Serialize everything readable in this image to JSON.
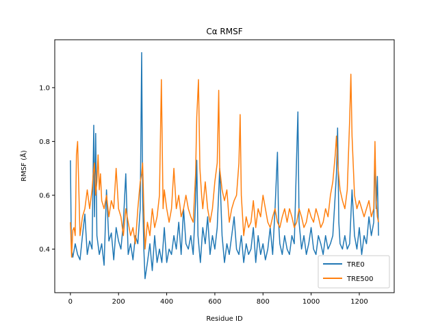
{
  "chart_data": {
    "type": "line",
    "title": "Cα RMSF",
    "xlabel": "Residue ID",
    "ylabel": "RMSF (Å)",
    "xlim": [
      -65,
      1345
    ],
    "ylim": [
      0.238,
      1.178
    ],
    "xticks": [
      0,
      200,
      400,
      600,
      800,
      1000,
      1200
    ],
    "yticks": [
      0.4,
      0.6,
      0.8,
      1.0
    ],
    "ytick_labels": [
      "0.4",
      "0.6",
      "0.8",
      "1.0"
    ],
    "grid": false,
    "legend_position": "lower-right",
    "series": [
      {
        "name": "TRE0",
        "color": "#1f77b4",
        "points": [
          [
            0,
            0.73
          ],
          [
            4,
            0.4
          ],
          [
            10,
            0.37
          ],
          [
            20,
            0.42
          ],
          [
            30,
            0.38
          ],
          [
            40,
            0.36
          ],
          [
            50,
            0.45
          ],
          [
            60,
            0.53
          ],
          [
            70,
            0.38
          ],
          [
            80,
            0.43
          ],
          [
            90,
            0.4
          ],
          [
            97,
            0.86
          ],
          [
            100,
            0.52
          ],
          [
            105,
            0.83
          ],
          [
            110,
            0.45
          ],
          [
            120,
            0.38
          ],
          [
            130,
            0.42
          ],
          [
            140,
            0.34
          ],
          [
            150,
            0.62
          ],
          [
            160,
            0.43
          ],
          [
            170,
            0.46
          ],
          [
            180,
            0.36
          ],
          [
            190,
            0.48
          ],
          [
            200,
            0.43
          ],
          [
            210,
            0.4
          ],
          [
            220,
            0.5
          ],
          [
            230,
            0.68
          ],
          [
            240,
            0.38
          ],
          [
            250,
            0.42
          ],
          [
            260,
            0.36
          ],
          [
            270,
            0.45
          ],
          [
            280,
            0.42
          ],
          [
            290,
            0.55
          ],
          [
            296,
            1.13
          ],
          [
            300,
            0.6
          ],
          [
            305,
            0.4
          ],
          [
            310,
            0.29
          ],
          [
            320,
            0.35
          ],
          [
            330,
            0.42
          ],
          [
            340,
            0.32
          ],
          [
            350,
            0.45
          ],
          [
            360,
            0.35
          ],
          [
            370,
            0.4
          ],
          [
            380,
            0.35
          ],
          [
            390,
            0.48
          ],
          [
            400,
            0.35
          ],
          [
            410,
            0.4
          ],
          [
            420,
            0.38
          ],
          [
            430,
            0.45
          ],
          [
            440,
            0.4
          ],
          [
            450,
            0.5
          ],
          [
            460,
            0.38
          ],
          [
            470,
            0.55
          ],
          [
            480,
            0.42
          ],
          [
            490,
            0.4
          ],
          [
            500,
            0.45
          ],
          [
            510,
            0.38
          ],
          [
            520,
            0.58
          ],
          [
            525,
            0.73
          ],
          [
            530,
            0.45
          ],
          [
            540,
            0.35
          ],
          [
            550,
            0.48
          ],
          [
            560,
            0.42
          ],
          [
            570,
            0.52
          ],
          [
            580,
            0.38
          ],
          [
            590,
            0.45
          ],
          [
            600,
            0.4
          ],
          [
            610,
            0.48
          ],
          [
            620,
            0.7
          ],
          [
            630,
            0.45
          ],
          [
            640,
            0.35
          ],
          [
            650,
            0.42
          ],
          [
            660,
            0.38
          ],
          [
            670,
            0.45
          ],
          [
            680,
            0.52
          ],
          [
            690,
            0.4
          ],
          [
            700,
            0.38
          ],
          [
            710,
            0.45
          ],
          [
            720,
            0.35
          ],
          [
            730,
            0.42
          ],
          [
            740,
            0.38
          ],
          [
            750,
            0.4
          ],
          [
            760,
            0.48
          ],
          [
            770,
            0.35
          ],
          [
            780,
            0.45
          ],
          [
            790,
            0.38
          ],
          [
            800,
            0.42
          ],
          [
            810,
            0.36
          ],
          [
            820,
            0.4
          ],
          [
            830,
            0.48
          ],
          [
            840,
            0.38
          ],
          [
            850,
            0.55
          ],
          [
            860,
            0.76
          ],
          [
            865,
            0.5
          ],
          [
            870,
            0.42
          ],
          [
            880,
            0.38
          ],
          [
            890,
            0.45
          ],
          [
            900,
            0.4
          ],
          [
            910,
            0.38
          ],
          [
            920,
            0.45
          ],
          [
            930,
            0.42
          ],
          [
            940,
            0.75
          ],
          [
            945,
            0.91
          ],
          [
            950,
            0.5
          ],
          [
            960,
            0.4
          ],
          [
            970,
            0.45
          ],
          [
            980,
            0.38
          ],
          [
            990,
            0.42
          ],
          [
            1000,
            0.48
          ],
          [
            1010,
            0.4
          ],
          [
            1020,
            0.38
          ],
          [
            1030,
            0.45
          ],
          [
            1040,
            0.42
          ],
          [
            1050,
            0.38
          ],
          [
            1060,
            0.45
          ],
          [
            1070,
            0.4
          ],
          [
            1080,
            0.42
          ],
          [
            1090,
            0.45
          ],
          [
            1100,
            0.6
          ],
          [
            1105,
            0.68
          ],
          [
            1110,
            0.85
          ],
          [
            1115,
            0.5
          ],
          [
            1120,
            0.42
          ],
          [
            1130,
            0.4
          ],
          [
            1140,
            0.45
          ],
          [
            1150,
            0.4
          ],
          [
            1160,
            0.42
          ],
          [
            1170,
            0.62
          ],
          [
            1180,
            0.45
          ],
          [
            1190,
            0.4
          ],
          [
            1200,
            0.48
          ],
          [
            1210,
            0.38
          ],
          [
            1220,
            0.45
          ],
          [
            1230,
            0.42
          ],
          [
            1240,
            0.52
          ],
          [
            1250,
            0.45
          ],
          [
            1260,
            0.5
          ],
          [
            1265,
            0.76
          ],
          [
            1270,
            0.55
          ],
          [
            1275,
            0.67
          ],
          [
            1280,
            0.45
          ]
        ]
      },
      {
        "name": "TRE500",
        "color": "#ff7f0e",
        "points": [
          [
            0,
            0.5
          ],
          [
            5,
            0.37
          ],
          [
            10,
            0.47
          ],
          [
            15,
            0.48
          ],
          [
            20,
            0.45
          ],
          [
            25,
            0.75
          ],
          [
            30,
            0.8
          ],
          [
            35,
            0.62
          ],
          [
            40,
            0.45
          ],
          [
            50,
            0.52
          ],
          [
            60,
            0.55
          ],
          [
            70,
            0.62
          ],
          [
            80,
            0.55
          ],
          [
            90,
            0.62
          ],
          [
            95,
            0.68
          ],
          [
            100,
            0.72
          ],
          [
            105,
            0.6
          ],
          [
            110,
            0.65
          ],
          [
            115,
            0.75
          ],
          [
            120,
            0.62
          ],
          [
            125,
            0.68
          ],
          [
            130,
            0.58
          ],
          [
            140,
            0.55
          ],
          [
            150,
            0.6
          ],
          [
            160,
            0.52
          ],
          [
            170,
            0.58
          ],
          [
            180,
            0.55
          ],
          [
            190,
            0.7
          ],
          [
            200,
            0.55
          ],
          [
            210,
            0.52
          ],
          [
            220,
            0.45
          ],
          [
            230,
            0.55
          ],
          [
            240,
            0.5
          ],
          [
            250,
            0.45
          ],
          [
            260,
            0.48
          ],
          [
            270,
            0.42
          ],
          [
            280,
            0.55
          ],
          [
            290,
            0.65
          ],
          [
            296,
            0.68
          ],
          [
            300,
            0.72
          ],
          [
            305,
            0.55
          ],
          [
            310,
            0.4
          ],
          [
            320,
            0.5
          ],
          [
            330,
            0.45
          ],
          [
            340,
            0.55
          ],
          [
            350,
            0.48
          ],
          [
            360,
            0.52
          ],
          [
            370,
            0.6
          ],
          [
            378,
            1.03
          ],
          [
            385,
            0.55
          ],
          [
            390,
            0.62
          ],
          [
            400,
            0.55
          ],
          [
            410,
            0.5
          ],
          [
            420,
            0.55
          ],
          [
            430,
            0.7
          ],
          [
            440,
            0.55
          ],
          [
            450,
            0.6
          ],
          [
            460,
            0.52
          ],
          [
            470,
            0.55
          ],
          [
            480,
            0.6
          ],
          [
            490,
            0.55
          ],
          [
            500,
            0.52
          ],
          [
            510,
            0.5
          ],
          [
            520,
            0.68
          ],
          [
            525,
            0.89
          ],
          [
            532,
            1.03
          ],
          [
            538,
            0.7
          ],
          [
            545,
            0.6
          ],
          [
            550,
            0.55
          ],
          [
            560,
            0.65
          ],
          [
            570,
            0.55
          ],
          [
            580,
            0.5
          ],
          [
            590,
            0.55
          ],
          [
            600,
            0.65
          ],
          [
            610,
            0.72
          ],
          [
            616,
            0.99
          ],
          [
            620,
            0.7
          ],
          [
            630,
            0.62
          ],
          [
            640,
            0.58
          ],
          [
            650,
            0.62
          ],
          [
            660,
            0.5
          ],
          [
            670,
            0.55
          ],
          [
            680,
            0.58
          ],
          [
            690,
            0.6
          ],
          [
            700,
            0.72
          ],
          [
            705,
            0.9
          ],
          [
            710,
            0.6
          ],
          [
            720,
            0.45
          ],
          [
            730,
            0.52
          ],
          [
            740,
            0.48
          ],
          [
            750,
            0.5
          ],
          [
            760,
            0.58
          ],
          [
            770,
            0.48
          ],
          [
            780,
            0.55
          ],
          [
            790,
            0.52
          ],
          [
            800,
            0.6
          ],
          [
            810,
            0.55
          ],
          [
            820,
            0.5
          ],
          [
            830,
            0.48
          ],
          [
            840,
            0.52
          ],
          [
            850,
            0.55
          ],
          [
            860,
            0.5
          ],
          [
            870,
            0.48
          ],
          [
            880,
            0.52
          ],
          [
            890,
            0.55
          ],
          [
            900,
            0.5
          ],
          [
            910,
            0.55
          ],
          [
            920,
            0.52
          ],
          [
            930,
            0.48
          ],
          [
            940,
            0.5
          ],
          [
            950,
            0.55
          ],
          [
            960,
            0.52
          ],
          [
            970,
            0.48
          ],
          [
            980,
            0.5
          ],
          [
            990,
            0.55
          ],
          [
            1000,
            0.52
          ],
          [
            1010,
            0.5
          ],
          [
            1020,
            0.55
          ],
          [
            1030,
            0.52
          ],
          [
            1040,
            0.48
          ],
          [
            1050,
            0.5
          ],
          [
            1060,
            0.55
          ],
          [
            1070,
            0.52
          ],
          [
            1080,
            0.6
          ],
          [
            1090,
            0.65
          ],
          [
            1100,
            0.75
          ],
          [
            1105,
            0.82
          ],
          [
            1110,
            0.72
          ],
          [
            1120,
            0.62
          ],
          [
            1130,
            0.58
          ],
          [
            1140,
            0.55
          ],
          [
            1150,
            0.62
          ],
          [
            1160,
            0.88
          ],
          [
            1165,
            1.05
          ],
          [
            1170,
            0.82
          ],
          [
            1180,
            0.6
          ],
          [
            1190,
            0.55
          ],
          [
            1200,
            0.58
          ],
          [
            1210,
            0.55
          ],
          [
            1220,
            0.52
          ],
          [
            1230,
            0.55
          ],
          [
            1240,
            0.58
          ],
          [
            1250,
            0.52
          ],
          [
            1260,
            0.55
          ],
          [
            1265,
            0.8
          ],
          [
            1270,
            0.58
          ],
          [
            1275,
            0.52
          ],
          [
            1280,
            0.5
          ]
        ]
      }
    ]
  }
}
